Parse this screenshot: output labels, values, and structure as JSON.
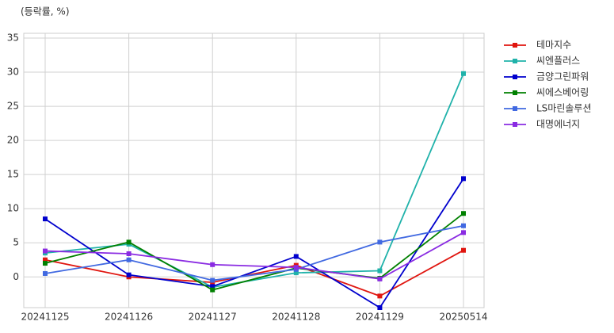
{
  "chart_data": {
    "type": "line",
    "ylabel": "(등락률, %)",
    "categories": [
      "20241125",
      "20241126",
      "20241127",
      "20241128",
      "20241129",
      "20250514"
    ],
    "series": [
      {
        "name": "테마지수",
        "color": "#e0150f",
        "values": [
          2.5,
          0,
          -0.8,
          1.7,
          -2.8,
          3.9
        ]
      },
      {
        "name": "씨엔플러스",
        "color": "#20b2aa",
        "values": [
          3.5,
          4.8,
          -1.5,
          0.6,
          0.9,
          29.8
        ]
      },
      {
        "name": "금양그린파워",
        "color": "#0000cd",
        "values": [
          8.5,
          0.3,
          -1.4,
          3.0,
          -4.5,
          14.4
        ]
      },
      {
        "name": "씨에스베어링",
        "color": "#008000",
        "values": [
          2.0,
          5.1,
          -1.9,
          1.3,
          -0.2,
          9.3
        ]
      },
      {
        "name": "LS마린솔루션",
        "color": "#4169e1",
        "values": [
          0.5,
          2.5,
          -0.5,
          1.1,
          5.1,
          7.5
        ]
      },
      {
        "name": "대명에너지",
        "color": "#8a2be2",
        "values": [
          3.8,
          3.4,
          1.8,
          1.4,
          -0.3,
          6.5
        ]
      }
    ],
    "ylim": [
      -4.5,
      35.7
    ],
    "yticks": [
      0,
      5,
      10,
      15,
      20,
      25,
      30,
      35
    ],
    "grid": true,
    "legend": "outside-right"
  }
}
